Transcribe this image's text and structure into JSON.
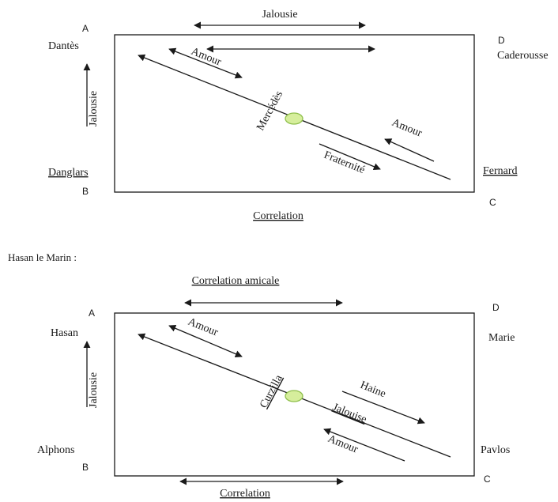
{
  "colors": {
    "line": "#1a1a1a",
    "node_fill": "#d6ee9c",
    "node_stroke": "#8fbf4c",
    "spellcheck": "#d21f1f"
  },
  "diagram1": {
    "corners": {
      "a": "A",
      "b": "B",
      "c": "C",
      "d": "D"
    },
    "persons": {
      "top_left": "Dantès",
      "bottom_left": "Danglars",
      "top_right": "Caderousse",
      "bottom_right": "Fernard"
    },
    "top_label": "Jalousie",
    "left_label": "Jalousie",
    "bottom_label": "Correlation",
    "center_node": "Mercédès",
    "arrows": {
      "upper_left": "Amour",
      "right_upper": "Amour",
      "lower_middle": "Fraternité"
    }
  },
  "section_heading": "Hasan le Marin :",
  "diagram2": {
    "corners": {
      "a": "A",
      "b": "B",
      "c": "C",
      "d": "D"
    },
    "persons": {
      "top_left": "Hasan",
      "bottom_left": "Alphons",
      "top_right": "Marie",
      "bottom_right": "Pavlos"
    },
    "top_label": "Correlation amicale",
    "left_label": "Jalousie",
    "bottom_label": "Correlation",
    "center_node": "Curzilla",
    "arrows": {
      "upper_left": "Amour",
      "right_upper": "Haine",
      "right_middle": "Jalouise",
      "right_lower": "Amour"
    }
  }
}
